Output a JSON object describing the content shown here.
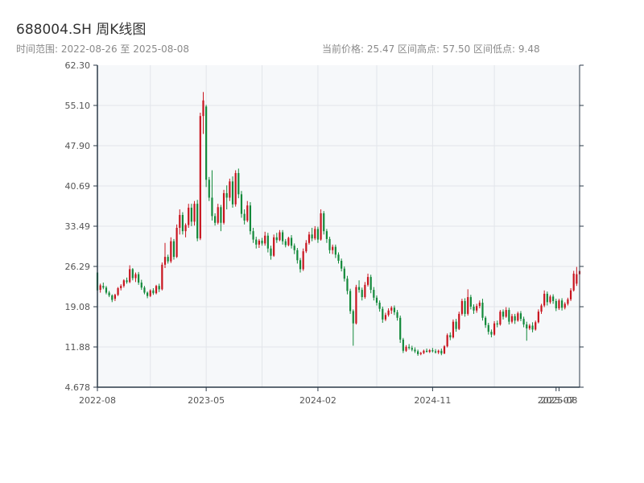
{
  "header": {
    "title": "688004.SH 周K线图",
    "range_text": "时间范围: 2022-08-26 至 2025-08-08",
    "stats_text": "当前价格: 25.47   区间高点: 57.50   区间低点: 9.48"
  },
  "colors": {
    "up": "#c8141e",
    "down": "#12893a",
    "plot_bg": "#f6f8fa",
    "grid": "#e2e5ea",
    "axis": "#2b3a48"
  },
  "chart_data": {
    "type": "candlestick",
    "title": "688004.SH 周K线图",
    "ylim": [
      4.678,
      62.3
    ],
    "y_ticks": [
      "4.678",
      "11.88",
      "19.08",
      "26.29",
      "33.49",
      "40.69",
      "47.90",
      "55.10",
      "62.30"
    ],
    "x_ticks": [
      "2022-08",
      "2023-05",
      "2024-02",
      "2024-11",
      "2025-07",
      "2025-08"
    ],
    "grid": true,
    "current_price": 25.47,
    "range_high": 57.5,
    "range_low": 9.48,
    "series": [
      {
        "name": "688004.SH",
        "ohlc": [
          [
            25.2,
            25.8,
            21.5,
            22.0
          ],
          [
            22.1,
            23.2,
            21.6,
            22.9
          ],
          [
            22.8,
            23.4,
            22.2,
            22.5
          ],
          [
            22.5,
            22.8,
            21.3,
            21.6
          ],
          [
            21.6,
            21.9,
            20.8,
            21.1
          ],
          [
            21.1,
            21.3,
            19.9,
            20.3
          ],
          [
            20.5,
            21.4,
            20.1,
            21.2
          ],
          [
            21.2,
            22.6,
            21.0,
            22.4
          ],
          [
            22.4,
            23.1,
            22.0,
            22.8
          ],
          [
            22.8,
            24.0,
            22.5,
            23.8
          ],
          [
            23.8,
            24.3,
            23.2,
            23.5
          ],
          [
            23.5,
            26.5,
            23.3,
            25.8
          ],
          [
            25.8,
            26.0,
            23.8,
            24.2
          ],
          [
            24.2,
            25.2,
            23.5,
            24.9
          ],
          [
            24.9,
            25.3,
            23.0,
            23.4
          ],
          [
            23.4,
            23.9,
            22.1,
            22.5
          ],
          [
            22.5,
            22.8,
            21.3,
            21.6
          ],
          [
            21.6,
            21.8,
            20.6,
            21.0
          ],
          [
            21.0,
            22.2,
            20.8,
            22.0
          ],
          [
            22.0,
            22.4,
            21.2,
            21.5
          ],
          [
            21.5,
            23.0,
            21.3,
            22.8
          ],
          [
            22.8,
            23.2,
            21.7,
            22.2
          ],
          [
            22.2,
            27.0,
            22.0,
            26.6
          ],
          [
            26.6,
            30.5,
            26.0,
            28.0
          ],
          [
            28.0,
            28.4,
            26.8,
            27.2
          ],
          [
            27.2,
            31.5,
            26.9,
            30.8
          ],
          [
            30.8,
            31.2,
            27.5,
            28.0
          ],
          [
            28.0,
            33.8,
            27.8,
            33.2
          ],
          [
            33.2,
            36.5,
            32.0,
            35.5
          ],
          [
            35.5,
            36.0,
            32.0,
            32.6
          ],
          [
            32.6,
            34.0,
            31.5,
            33.7
          ],
          [
            33.7,
            37.5,
            33.2,
            36.8
          ],
          [
            36.8,
            37.5,
            33.5,
            34.3
          ],
          [
            34.3,
            38.0,
            33.6,
            37.5
          ],
          [
            37.5,
            38.2,
            30.8,
            31.3
          ],
          [
            31.3,
            53.8,
            31.0,
            53.2
          ],
          [
            53.2,
            57.5,
            50.0,
            56.0
          ],
          [
            54.9,
            55.2,
            40.5,
            41.8
          ],
          [
            41.8,
            42.3,
            38.0,
            38.6
          ],
          [
            38.6,
            43.5,
            34.5,
            35.3
          ],
          [
            35.3,
            35.8,
            33.6,
            34.1
          ],
          [
            34.1,
            37.5,
            33.8,
            36.9
          ],
          [
            36.9,
            37.3,
            32.6,
            34.1
          ],
          [
            34.1,
            40.0,
            33.8,
            39.4
          ],
          [
            39.4,
            40.8,
            36.5,
            38.6
          ],
          [
            38.6,
            42.0,
            38.0,
            41.5
          ],
          [
            41.5,
            42.4,
            36.8,
            37.4
          ],
          [
            37.4,
            43.5,
            37.0,
            43.0
          ],
          [
            43.0,
            43.8,
            38.5,
            39.2
          ],
          [
            39.2,
            39.8,
            35.0,
            35.7
          ],
          [
            35.7,
            36.5,
            33.8,
            34.5
          ],
          [
            34.5,
            38.0,
            34.2,
            37.2
          ],
          [
            37.2,
            37.8,
            32.0,
            32.6
          ],
          [
            32.6,
            33.2,
            30.5,
            31.1
          ],
          [
            31.1,
            31.6,
            29.5,
            30.2
          ],
          [
            30.2,
            31.2,
            29.6,
            30.9
          ],
          [
            30.9,
            31.4,
            30.0,
            30.4
          ],
          [
            30.4,
            32.5,
            30.0,
            31.8
          ],
          [
            31.8,
            32.3,
            28.8,
            29.5
          ],
          [
            29.5,
            30.0,
            27.5,
            28.2
          ],
          [
            28.2,
            32.0,
            28.0,
            31.5
          ],
          [
            31.5,
            32.3,
            30.5,
            31.0
          ],
          [
            31.0,
            32.8,
            30.8,
            32.4
          ],
          [
            32.4,
            32.8,
            30.2,
            30.8
          ],
          [
            30.8,
            31.2,
            29.7,
            30.1
          ],
          [
            30.1,
            31.6,
            29.9,
            31.4
          ],
          [
            31.4,
            31.9,
            29.5,
            30.0
          ],
          [
            30.0,
            30.4,
            28.5,
            29.2
          ],
          [
            29.2,
            29.6,
            26.8,
            27.4
          ],
          [
            27.4,
            27.8,
            25.2,
            25.8
          ],
          [
            25.8,
            29.5,
            25.5,
            29.0
          ],
          [
            29.0,
            31.0,
            28.7,
            30.5
          ],
          [
            30.5,
            32.5,
            30.2,
            32.0
          ],
          [
            32.0,
            33.2,
            30.8,
            31.3
          ],
          [
            31.3,
            33.5,
            31.0,
            33.0
          ],
          [
            33.0,
            33.4,
            30.5,
            31.1
          ],
          [
            31.1,
            36.5,
            30.9,
            35.8
          ],
          [
            35.8,
            36.2,
            32.0,
            32.6
          ],
          [
            32.6,
            33.0,
            30.5,
            31.2
          ],
          [
            31.2,
            31.6,
            28.6,
            29.2
          ],
          [
            29.2,
            30.2,
            28.5,
            29.8
          ],
          [
            29.8,
            30.2,
            27.8,
            28.4
          ],
          [
            28.4,
            28.8,
            26.8,
            27.3
          ],
          [
            27.3,
            27.7,
            25.4,
            25.9
          ],
          [
            25.9,
            26.3,
            23.6,
            24.1
          ],
          [
            24.1,
            24.6,
            21.3,
            21.9
          ],
          [
            21.9,
            22.3,
            17.8,
            18.3
          ],
          [
            18.3,
            18.6,
            12.1,
            16.1
          ],
          [
            16.1,
            23.0,
            15.9,
            22.6
          ],
          [
            22.6,
            23.8,
            21.6,
            22.1
          ],
          [
            22.1,
            22.5,
            20.2,
            20.8
          ],
          [
            20.8,
            23.5,
            20.5,
            23.0
          ],
          [
            23.0,
            25.0,
            22.7,
            24.4
          ],
          [
            24.4,
            24.8,
            21.5,
            22.1
          ],
          [
            22.1,
            22.6,
            20.2,
            20.7
          ],
          [
            20.7,
            21.1,
            19.3,
            19.8
          ],
          [
            19.8,
            20.2,
            18.2,
            18.7
          ],
          [
            18.7,
            19.1,
            16.2,
            16.8
          ],
          [
            16.8,
            18.0,
            16.5,
            17.6
          ],
          [
            17.6,
            18.8,
            17.3,
            18.4
          ],
          [
            18.4,
            19.2,
            17.8,
            18.9
          ],
          [
            18.9,
            19.3,
            17.6,
            18.1
          ],
          [
            18.1,
            18.5,
            16.6,
            17.1
          ],
          [
            17.1,
            17.5,
            12.6,
            13.2
          ],
          [
            13.2,
            13.5,
            10.8,
            11.2
          ],
          [
            11.2,
            12.2,
            11.0,
            11.9
          ],
          [
            11.9,
            12.4,
            11.4,
            11.7
          ],
          [
            11.7,
            12.1,
            11.1,
            11.4
          ],
          [
            11.4,
            11.8,
            10.8,
            11.1
          ],
          [
            11.1,
            11.4,
            10.3,
            10.6
          ],
          [
            10.6,
            11.0,
            10.4,
            10.8
          ],
          [
            10.8,
            11.4,
            10.6,
            11.2
          ],
          [
            11.2,
            11.6,
            10.9,
            11.0
          ],
          [
            11.0,
            11.5,
            10.8,
            11.3
          ],
          [
            11.3,
            11.7,
            10.9,
            11.1
          ],
          [
            11.1,
            11.5,
            10.7,
            10.9
          ],
          [
            10.9,
            11.4,
            10.6,
            11.2
          ],
          [
            11.2,
            11.6,
            10.4,
            10.7
          ],
          [
            10.7,
            12.2,
            10.6,
            12.0
          ],
          [
            12.0,
            14.3,
            11.8,
            14.0
          ],
          [
            14.0,
            14.5,
            13.1,
            13.6
          ],
          [
            13.6,
            16.8,
            13.4,
            16.4
          ],
          [
            16.4,
            16.9,
            14.6,
            15.1
          ],
          [
            15.1,
            18.2,
            14.9,
            17.8
          ],
          [
            17.8,
            20.5,
            17.5,
            20.1
          ],
          [
            20.1,
            20.6,
            17.3,
            17.8
          ],
          [
            17.8,
            22.2,
            17.5,
            20.8
          ],
          [
            20.8,
            21.2,
            18.6,
            19.1
          ],
          [
            19.1,
            19.5,
            17.8,
            18.4
          ],
          [
            18.4,
            19.6,
            18.0,
            19.2
          ],
          [
            19.2,
            20.2,
            18.8,
            19.8
          ],
          [
            19.8,
            20.5,
            16.6,
            17.1
          ],
          [
            17.1,
            17.4,
            15.3,
            15.8
          ],
          [
            15.8,
            16.2,
            14.1,
            14.6
          ],
          [
            14.6,
            15.0,
            13.6,
            14.1
          ],
          [
            14.1,
            16.5,
            13.9,
            16.1
          ],
          [
            16.1,
            16.6,
            15.4,
            15.9
          ],
          [
            15.9,
            18.5,
            15.7,
            18.2
          ],
          [
            18.2,
            18.6,
            16.8,
            17.3
          ],
          [
            17.3,
            19.0,
            17.1,
            18.5
          ],
          [
            18.5,
            18.9,
            15.9,
            16.4
          ],
          [
            16.4,
            17.8,
            16.1,
            17.4
          ],
          [
            17.4,
            17.8,
            16.0,
            16.6
          ],
          [
            16.6,
            18.2,
            16.4,
            17.9
          ],
          [
            17.9,
            18.3,
            16.5,
            16.9
          ],
          [
            16.9,
            17.3,
            15.4,
            15.9
          ],
          [
            15.9,
            16.4,
            13.0,
            15.2
          ],
          [
            15.2,
            16.0,
            14.9,
            15.7
          ],
          [
            15.7,
            16.3,
            14.5,
            15.0
          ],
          [
            15.0,
            16.6,
            14.8,
            16.3
          ],
          [
            16.3,
            18.6,
            16.1,
            18.2
          ],
          [
            18.2,
            19.6,
            17.8,
            19.3
          ],
          [
            19.3,
            22.0,
            19.0,
            21.4
          ],
          [
            21.4,
            21.8,
            19.3,
            19.9
          ],
          [
            19.9,
            21.2,
            19.6,
            20.9
          ],
          [
            20.9,
            21.3,
            19.6,
            20.1
          ],
          [
            20.1,
            20.5,
            18.3,
            18.8
          ],
          [
            18.8,
            20.5,
            18.5,
            20.2
          ],
          [
            20.2,
            20.6,
            18.4,
            18.9
          ],
          [
            18.9,
            19.9,
            18.6,
            19.6
          ],
          [
            19.6,
            20.7,
            19.3,
            20.4
          ],
          [
            20.4,
            22.4,
            20.1,
            22.0
          ],
          [
            22.0,
            25.5,
            21.8,
            25.0
          ],
          [
            23.2,
            26.2,
            22.8,
            24.9
          ],
          [
            24.9,
            26.4,
            24.6,
            25.47
          ]
        ]
      }
    ]
  }
}
